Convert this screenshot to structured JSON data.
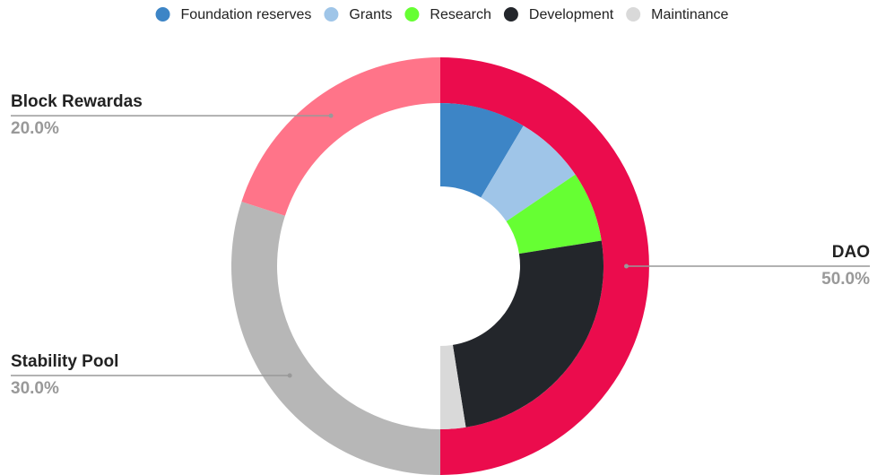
{
  "chart_data": {
    "type": "nested-donut",
    "rings": [
      {
        "categories": [
          "DAO",
          "Stability Pool",
          "Block Rewardas"
        ],
        "values": [
          50,
          30,
          20
        ],
        "value_labels": [
          "50.0%",
          "30.0%",
          "20.0%"
        ],
        "colors": [
          "#eb0c4d",
          "#b7b7b7",
          "#ff7489"
        ]
      },
      {
        "categories": [
          "Foundation reserves",
          "Grants",
          "Research",
          "Development",
          "Maintinance"
        ],
        "values": [
          8.5,
          7,
          7,
          25,
          2.5
        ],
        "colors": [
          "#3d85c6",
          "#9fc5e8",
          "#66ff33",
          "#23262b",
          "#d9d9d9"
        ]
      }
    ],
    "legend": "top"
  }
}
